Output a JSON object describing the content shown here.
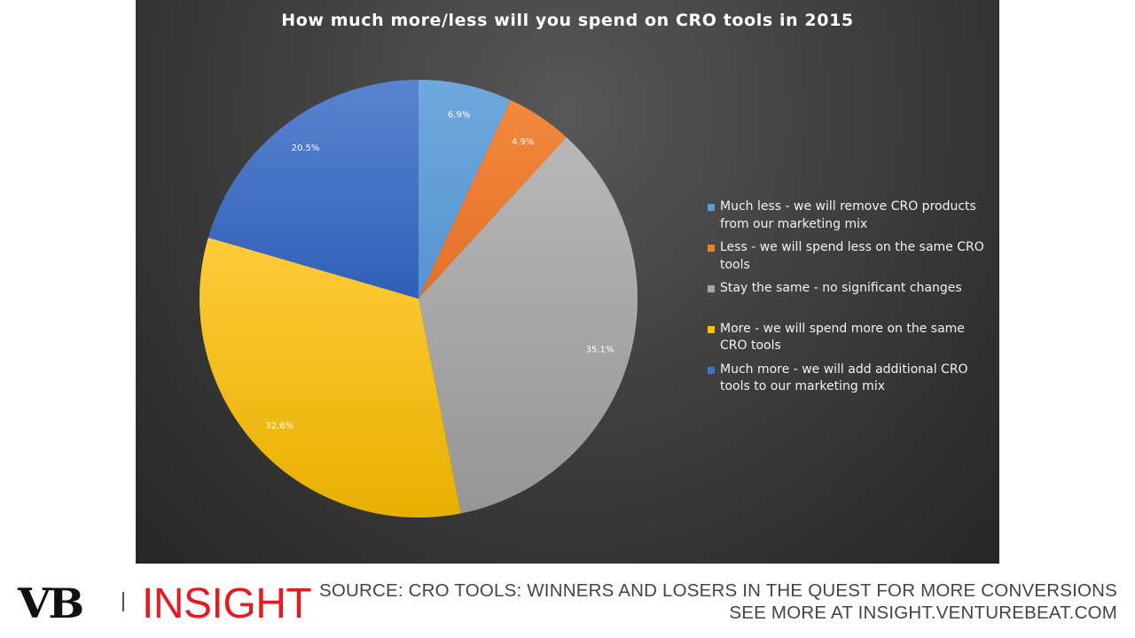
{
  "chart_data": {
    "type": "pie",
    "title": "How much more/less will you spend on CRO tools in 2015",
    "categories": [
      "Much less - we will remove CRO products from our marketing mix",
      "Less - we will spend less on the same CRO tools",
      "Stay the same - no significant changes",
      "More - we will spend more on the same CRO tools",
      "Much more - we will add additional CRO tools to our marketing mix"
    ],
    "values": [
      6.9,
      4.9,
      35.1,
      32.6,
      20.5
    ],
    "data_labels": [
      "6.9%",
      "4.9%",
      "35.1%",
      "32.6%",
      "20.5%"
    ],
    "colors": [
      "#5b9bd5",
      "#ed7d31",
      "#a5a5a5",
      "#ffc000",
      "#4472c4"
    ],
    "legend_placement": "right"
  },
  "footer": {
    "logo_vb": "VB",
    "logo_insight": "INSIGHT",
    "source_line": "SOURCE: CRO TOOLS: WINNERS AND LOSERS IN THE QUEST FOR MORE CONVERSIONS",
    "more_line": "SEE MORE AT INSIGHT.VENTUREBEAT.COM"
  }
}
